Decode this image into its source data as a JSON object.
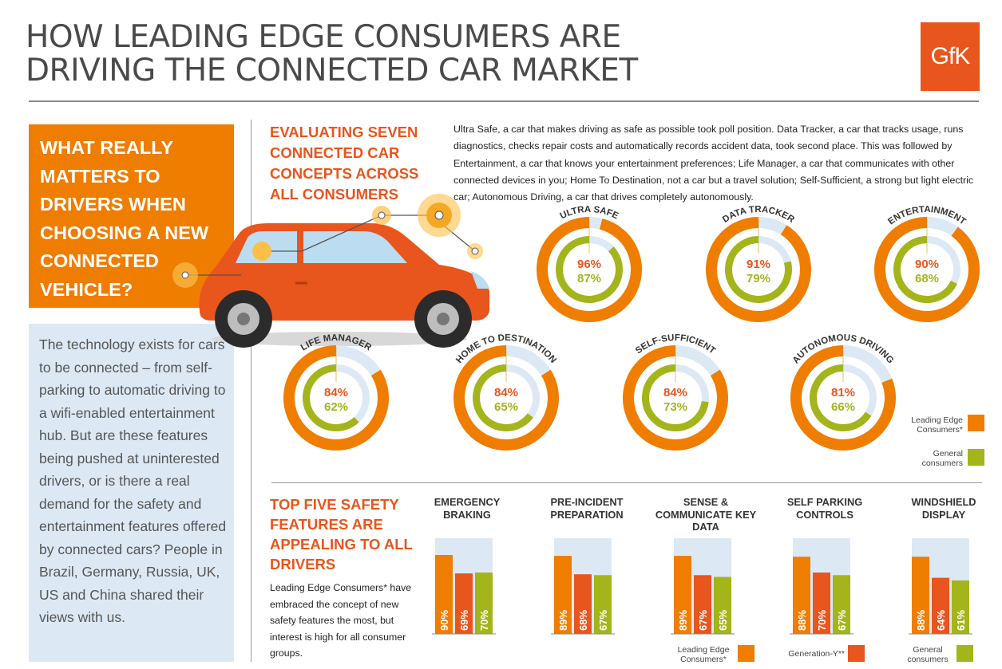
{
  "header": {
    "title_line1": "HOW LEADING EDGE CONSUMERS ARE",
    "title_line2": "DRIVING THE CONNECTED CAR MARKET",
    "logo": "GfK"
  },
  "colors": {
    "leading_edge": "#ef7d00",
    "generation_y": "#e8551d",
    "general": "#a4b41b",
    "ring_bg": "#dce9f5",
    "car_body": "#e8551d"
  },
  "sidebar": {
    "question": "WHAT REALLY MATTERS TO DRIVERS WHEN CHOOSING A NEW CONNECTED VEHICLE?",
    "intro": "The technology exists for cars to be connected – from self-parking to automatic driving to a wifi-enabled entertainment hub. But are these features being pushed at uninterested drivers, or is there a real demand for the safety and entertainment features offered by connected cars? People in Brazil, Germany, Russia, UK, US and China shared their views with us."
  },
  "concepts_section": {
    "heading": "EVALUATING SEVEN CONNECTED CAR CONCEPTS ACROSS ALL CONSUMERS",
    "description": "Ultra Safe, a car that makes driving as safe as possible took poll position. Data Tracker, a car that tracks usage, runs diagnostics, checks repair costs and automatically records accident data, took second place. This was followed by Entertainment, a car that knows your entertainment preferences; Life Manager, a car that communicates with other connected devices in you; Home To Destination, not a car but a travel solution; Self-Sufficient, a strong but light electric car; Autonomous Driving, a car that drives completely autonomously.",
    "legend": {
      "leading_edge": "Leading Edge Consumers*",
      "general": "General consumers"
    }
  },
  "chart_data": [
    {
      "type": "pie",
      "series": [
        {
          "name": "Leading Edge Consumers*"
        },
        {
          "name": "General consumers"
        }
      ],
      "categories": [
        "ULTRA SAFE",
        "DATA TRACKER",
        "ENTERTAINMENT",
        "LIFE MANAGER",
        "HOME TO DESTINATION",
        "SELF-SUFFICIENT",
        "AUTONOMOUS DRIVING"
      ],
      "items": [
        {
          "label": "ULTRA SAFE",
          "leading": 96,
          "general": 87,
          "leading_text": "96%",
          "general_text": "87%"
        },
        {
          "label": "DATA TRACKER",
          "leading": 91,
          "general": 79,
          "leading_text": "91%",
          "general_text": "79%"
        },
        {
          "label": "ENTERTAINMENT",
          "leading": 90,
          "general": 68,
          "leading_text": "90%",
          "general_text": "68%"
        },
        {
          "label": "LIFE MANAGER",
          "leading": 84,
          "general": 62,
          "leading_text": "84%",
          "general_text": "62%"
        },
        {
          "label": "HOME TO DESTINATION",
          "leading": 84,
          "general": 65,
          "leading_text": "84%",
          "general_text": "65%"
        },
        {
          "label": "SELF-SUFFICIENT",
          "leading": 84,
          "general": 73,
          "leading_text": "84%",
          "general_text": "73%"
        },
        {
          "label": "AUTONOMOUS DRIVING",
          "leading": 81,
          "general": 66,
          "leading_text": "81%",
          "general_text": "66%"
        }
      ]
    },
    {
      "type": "bar",
      "categories": [
        "EMERGENCY BRAKING",
        "PRE-INCIDENT PREPARATION",
        "SENSE & COMMUNICATE KEY DATA",
        "SELF PARKING CONTROLS",
        "WINDSHIELD DISPLAY"
      ],
      "series": [
        {
          "name": "Leading Edge Consumers*",
          "values": [
            90,
            89,
            89,
            88,
            88
          ],
          "labels": [
            "90%",
            "89%",
            "89%",
            "88%",
            "88%"
          ]
        },
        {
          "name": "Generation-Y**",
          "values": [
            69,
            68,
            67,
            70,
            64
          ],
          "labels": [
            "69%",
            "68%",
            "67%",
            "70%",
            "64%"
          ]
        },
        {
          "name": "General consumers",
          "values": [
            70,
            67,
            65,
            67,
            61
          ],
          "labels": [
            "70%",
            "67%",
            "65%",
            "67%",
            "61%"
          ]
        }
      ],
      "ylim": [
        0,
        100
      ]
    }
  ],
  "safety_section": {
    "heading": "TOP FIVE SAFETY FEATURES ARE APPEALING TO ALL DRIVERS",
    "description": "Leading Edge Consumers* have embraced the concept of new safety features the most, but interest is high for all consumer groups.",
    "feature_labels": [
      "EMERGENCY BRAKING",
      "PRE-INCIDENT PREPARATION",
      "SENSE & COMMUNICATE KEY DATA",
      "SELF PARKING CONTROLS",
      "WINDSHIELD DISPLAY"
    ],
    "legend": {
      "leading_edge": "Leading Edge Consumers*",
      "generation_y": "Generation-Y**",
      "general": "General consumers"
    }
  }
}
